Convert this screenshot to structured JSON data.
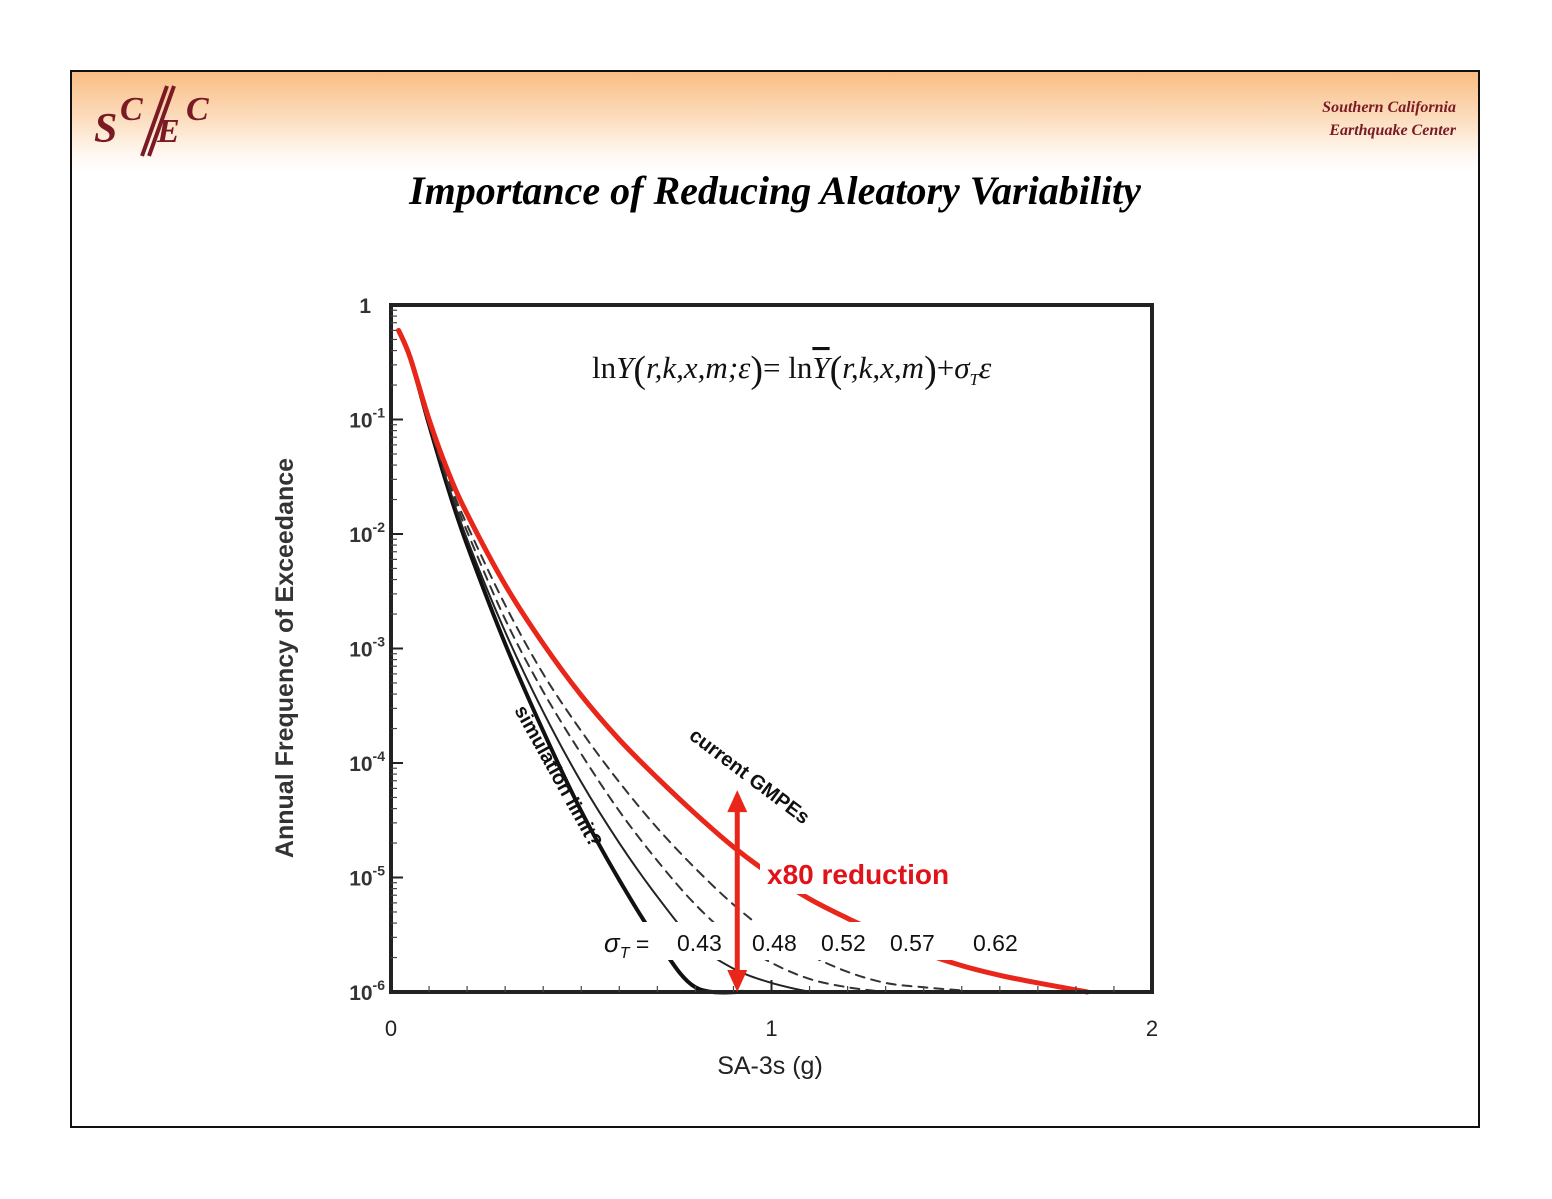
{
  "header": {
    "logo_text": "SCEC",
    "org_line1": "Southern California",
    "org_line2": "Earthquake Center",
    "title": "Importance of Reducing Aleatory Variability",
    "band_color": "#f9bd83",
    "brand_color": "#7a1a24"
  },
  "chart_data": {
    "type": "line",
    "title": "",
    "equation": "lnY(r,k,x,m;ε) = lnȲ(r,k,x,m) + σTε",
    "xlabel": "SA-3s (g)",
    "ylabel": "Annual Frequency of Exceedance",
    "xlim": [
      0,
      2
    ],
    "ylim": [
      1e-06,
      1
    ],
    "yscale": "log",
    "xticks": [
      0,
      1,
      2
    ],
    "xtick_labels": [
      "0",
      "1",
      "2"
    ],
    "yticks": [
      1,
      0.1,
      0.01,
      0.001,
      0.0001,
      1e-05,
      1e-06
    ],
    "ytick_labels": [
      {
        "base": "1",
        "exp": ""
      },
      {
        "base": "10",
        "exp": "-1"
      },
      {
        "base": "10",
        "exp": "-2"
      },
      {
        "base": "10",
        "exp": "-3"
      },
      {
        "base": "10",
        "exp": "-4"
      },
      {
        "base": "10",
        "exp": "-5"
      },
      {
        "base": "10",
        "exp": "-6"
      }
    ],
    "grid": false,
    "sigma_label": "σT =",
    "series": [
      {
        "name": "0.43",
        "style": "solid-thick",
        "color": "#111111",
        "x": [
          0.02,
          0.05,
          0.1,
          0.15,
          0.2,
          0.3,
          0.4,
          0.5,
          0.6,
          0.7,
          0.8,
          0.93
        ],
        "y": [
          0.6,
          0.35,
          0.09,
          0.025,
          0.008,
          0.0011,
          0.00019,
          3.8e-05,
          9.5e-06,
          2.8e-06,
          1.1e-06,
          1e-06
        ]
      },
      {
        "name": "0.48",
        "style": "solid-thin",
        "color": "#222222",
        "x": [
          0.02,
          0.05,
          0.1,
          0.15,
          0.2,
          0.3,
          0.4,
          0.5,
          0.6,
          0.7,
          0.8,
          0.9,
          1.0,
          1.1
        ],
        "y": [
          0.6,
          0.35,
          0.09,
          0.027,
          0.009,
          0.0014,
          0.00028,
          6.8e-05,
          2e-05,
          6.8e-06,
          2.7e-06,
          1.6e-06,
          1.2e-06,
          1e-06
        ]
      },
      {
        "name": "0.52",
        "style": "dashed",
        "color": "#333333",
        "x": [
          0.02,
          0.05,
          0.1,
          0.15,
          0.2,
          0.3,
          0.4,
          0.5,
          0.6,
          0.7,
          0.8,
          0.9,
          1.0,
          1.1,
          1.2,
          1.3
        ],
        "y": [
          0.6,
          0.35,
          0.09,
          0.028,
          0.0105,
          0.0018,
          0.00042,
          0.00012,
          3.8e-05,
          1.4e-05,
          5.8e-06,
          2.9e-06,
          1.8e-06,
          1.3e-06,
          1.1e-06,
          1e-06
        ]
      },
      {
        "name": "0.57",
        "style": "dashed",
        "color": "#333333",
        "x": [
          0.02,
          0.05,
          0.1,
          0.15,
          0.2,
          0.3,
          0.4,
          0.5,
          0.6,
          0.7,
          0.8,
          0.9,
          1.0,
          1.1,
          1.2,
          1.3,
          1.4,
          1.55
        ],
        "y": [
          0.6,
          0.35,
          0.09,
          0.03,
          0.012,
          0.0024,
          0.0006,
          0.00019,
          6.8e-05,
          2.7e-05,
          1.2e-05,
          5.8e-06,
          3.2e-06,
          2.1e-06,
          1.5e-06,
          1.2e-06,
          1.1e-06,
          1e-06
        ]
      },
      {
        "name": "0.62",
        "label": "current GMPEs",
        "style": "solid-thick",
        "color": "#e8261a",
        "x": [
          0.02,
          0.05,
          0.1,
          0.15,
          0.2,
          0.3,
          0.4,
          0.5,
          0.6,
          0.7,
          0.8,
          0.9,
          1.0,
          1.1,
          1.2,
          1.3,
          1.4,
          1.5,
          1.6,
          1.7,
          1.83
        ],
        "y": [
          0.6,
          0.35,
          0.1,
          0.035,
          0.015,
          0.0036,
          0.0011,
          0.00039,
          0.00016,
          7.4e-05,
          3.6e-05,
          1.85e-05,
          1.05e-05,
          6.5e-06,
          4.4e-06,
          3.1e-06,
          2.2e-06,
          1.7e-06,
          1.4e-06,
          1.2e-06,
          1e-06
        ]
      }
    ],
    "annotations": {
      "simulation_limit": "simulation limit?",
      "current_gmpes": "current GMPEs",
      "reduction": "x80 reduction",
      "reduction_arrow": {
        "x": 0.91,
        "y_from": 5.8e-05,
        "y_to": 1e-06
      }
    }
  }
}
